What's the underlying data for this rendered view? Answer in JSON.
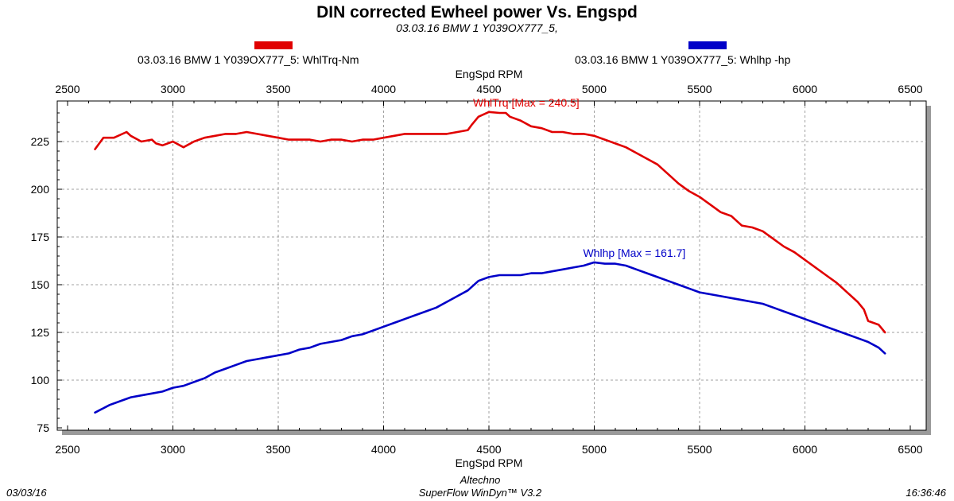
{
  "header": {
    "title": "DIN corrected Ewheel power Vs. Engspd",
    "subtitle": "03.03.16  BMW 1 Y039OX777_5,"
  },
  "legend": [
    {
      "label": "03.03.16  BMW 1 Y039OX777_5: WhlTrq-Nm",
      "color": "#e00000"
    },
    {
      "label": "03.03.16  BMW 1 Y039OX777_5: Whlhp -hp",
      "color": "#0000c8"
    }
  ],
  "footer": {
    "date": "03/03/16",
    "company": "Altechno",
    "software": "SuperFlow WinDyn™ V3.2",
    "time": "16:36:46"
  },
  "chart_data": {
    "type": "line",
    "xlabel": "EngSpd RPM",
    "xlim": [
      2500,
      6500
    ],
    "ylim": [
      75,
      240
    ],
    "xticks": [
      2500,
      3000,
      3500,
      4000,
      4500,
      5000,
      5500,
      6000,
      6500
    ],
    "yticks": [
      75,
      100,
      125,
      150,
      175,
      200,
      225
    ],
    "grid": true,
    "legend_position": "top",
    "series": [
      {
        "name": "03.03.16  BMW 1 Y039OX777_5: WhlTrq-Nm",
        "color": "#e00000",
        "annotation": "WhlTrq [Max = 240.5]",
        "x": [
          2630,
          2670,
          2720,
          2780,
          2800,
          2850,
          2900,
          2920,
          2950,
          3000,
          3050,
          3100,
          3150,
          3200,
          3250,
          3300,
          3350,
          3400,
          3450,
          3500,
          3550,
          3600,
          3650,
          3700,
          3750,
          3800,
          3850,
          3900,
          3950,
          4000,
          4050,
          4100,
          4150,
          4200,
          4250,
          4300,
          4350,
          4400,
          4420,
          4450,
          4500,
          4550,
          4580,
          4600,
          4650,
          4700,
          4750,
          4800,
          4850,
          4900,
          4950,
          5000,
          5050,
          5100,
          5150,
          5200,
          5250,
          5300,
          5350,
          5400,
          5450,
          5500,
          5550,
          5600,
          5650,
          5700,
          5750,
          5800,
          5850,
          5900,
          5950,
          6000,
          6050,
          6100,
          6150,
          6200,
          6250,
          6280,
          6300,
          6350,
          6380
        ],
        "values": [
          221,
          227,
          227,
          230,
          228,
          225,
          226,
          224,
          223,
          225,
          222,
          225,
          227,
          228,
          229,
          229,
          230,
          229,
          228,
          227,
          226,
          226,
          226,
          225,
          226,
          226,
          225,
          226,
          226,
          227,
          228,
          229,
          229,
          229,
          229,
          229,
          230,
          231,
          234,
          238,
          240.5,
          240,
          240,
          238,
          236,
          233,
          232,
          230,
          230,
          229,
          229,
          228,
          226,
          224,
          222,
          219,
          216,
          213,
          208,
          203,
          199,
          196,
          192,
          188,
          186,
          181,
          180,
          178,
          174,
          170,
          167,
          163,
          159,
          155,
          151,
          146,
          141,
          137,
          131,
          129,
          125
        ]
      },
      {
        "name": "03.03.16  BMW 1 Y039OX777_5: Whlhp -hp",
        "color": "#0000c8",
        "annotation": "Whlhp  [Max = 161.7]",
        "x": [
          2630,
          2700,
          2750,
          2800,
          2850,
          2900,
          2950,
          3000,
          3050,
          3100,
          3150,
          3200,
          3250,
          3300,
          3350,
          3400,
          3450,
          3500,
          3550,
          3600,
          3650,
          3700,
          3750,
          3800,
          3850,
          3900,
          3950,
          4000,
          4050,
          4100,
          4150,
          4200,
          4250,
          4300,
          4350,
          4400,
          4450,
          4500,
          4550,
          4600,
          4650,
          4700,
          4750,
          4800,
          4850,
          4900,
          4950,
          5000,
          5050,
          5100,
          5150,
          5200,
          5250,
          5300,
          5350,
          5400,
          5450,
          5500,
          5550,
          5600,
          5650,
          5700,
          5750,
          5800,
          5850,
          5900,
          5950,
          6000,
          6050,
          6100,
          6150,
          6200,
          6250,
          6300,
          6350,
          6380
        ],
        "values": [
          83,
          87,
          89,
          91,
          92,
          93,
          94,
          96,
          97,
          99,
          101,
          104,
          106,
          108,
          110,
          111,
          112,
          113,
          114,
          116,
          117,
          119,
          120,
          121,
          123,
          124,
          126,
          128,
          130,
          132,
          134,
          136,
          138,
          141,
          144,
          147,
          152,
          154,
          155,
          155,
          155,
          156,
          156,
          157,
          158,
          159,
          160,
          161.7,
          161,
          161,
          160,
          158,
          156,
          154,
          152,
          150,
          148,
          146,
          145,
          144,
          143,
          142,
          141,
          140,
          138,
          136,
          134,
          132,
          130,
          128,
          126,
          124,
          122,
          120,
          117,
          114
        ]
      }
    ]
  }
}
